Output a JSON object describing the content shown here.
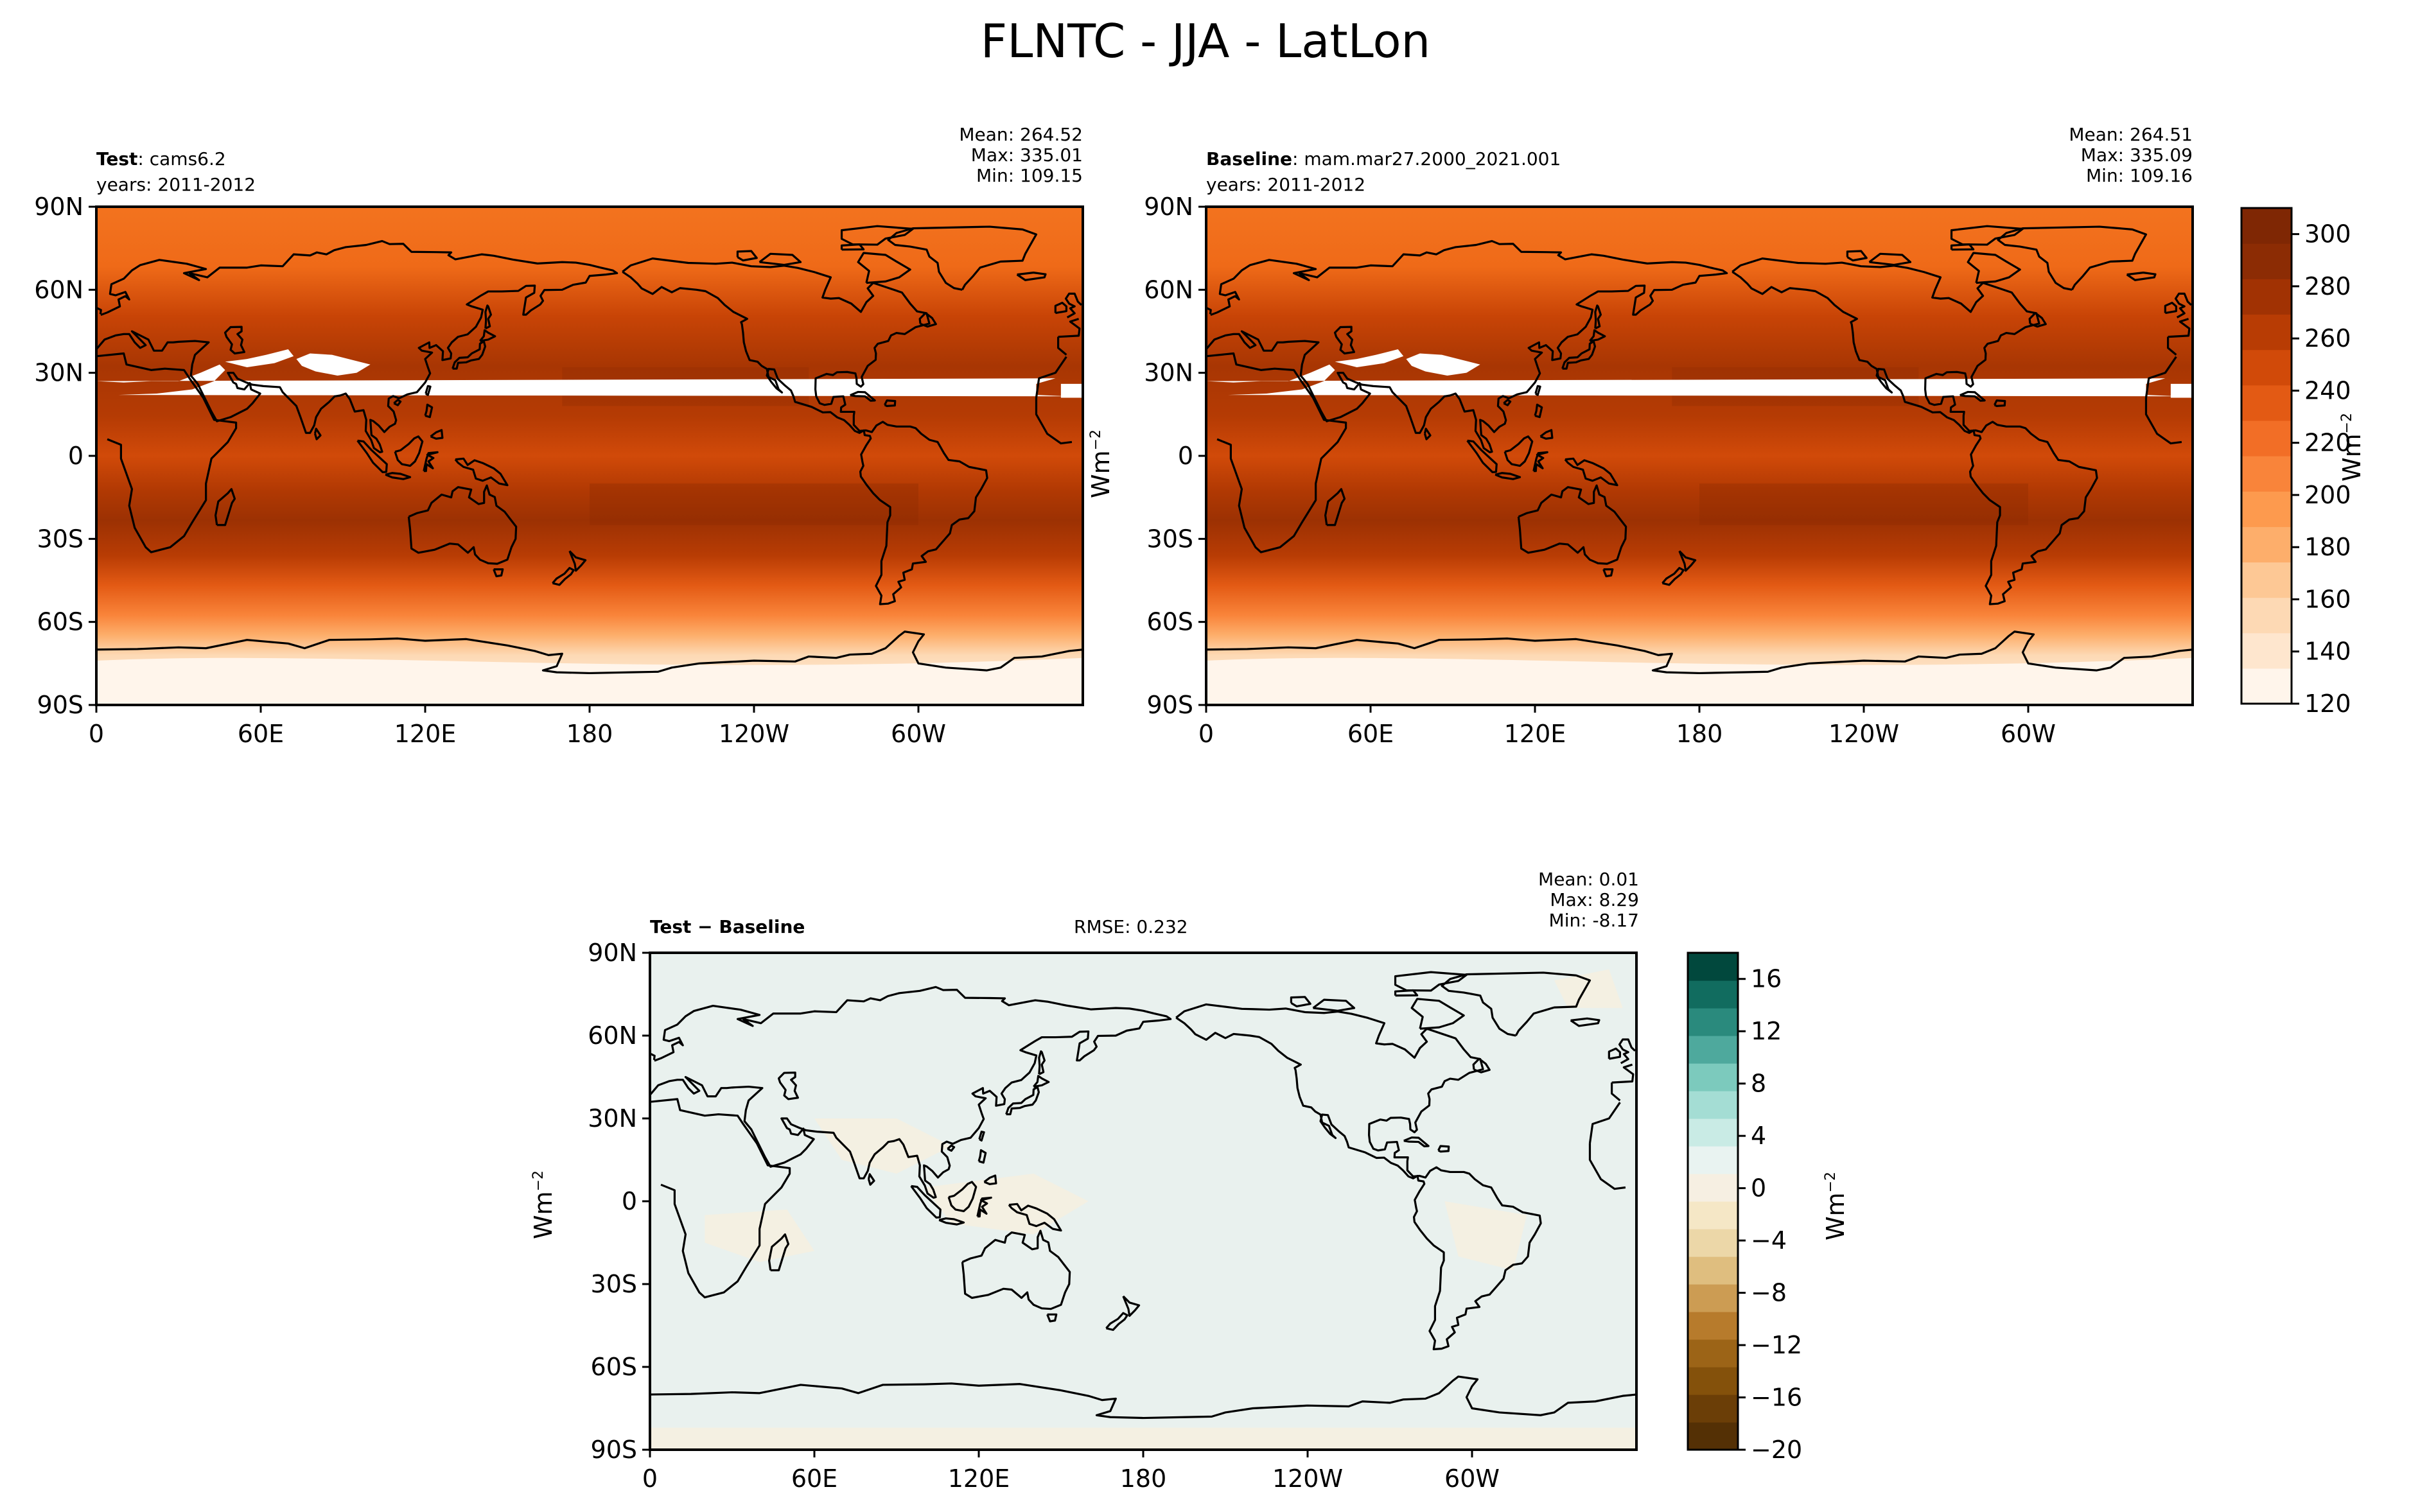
{
  "title": "FLNTC - JJA - LatLon",
  "test_panel": {
    "label_bold": "Test",
    "label_rest": ": cams6.2",
    "years": "years: 2011-2012",
    "mean": "Mean: 264.52",
    "max": "Max: 335.01",
    "min": "Min: 109.15"
  },
  "baseline_panel": {
    "label_bold": "Baseline",
    "label_rest": ": mam.mar27.2000_2021.001",
    "years": "years: 2011-2012",
    "mean": "Mean: 264.51",
    "max": "Max: 335.09",
    "min": "Min: 109.16"
  },
  "diff_panel": {
    "label_bold": "Test − Baseline",
    "rmse": "RMSE: 0.232",
    "mean": "Mean:  0.01",
    "max": "Max:  8.29",
    "min": "Min: -8.17"
  },
  "units_main": "Wm",
  "units_sup": "−2",
  "lat_ticks": [
    "90N",
    "60N",
    "30N",
    "0",
    "30S",
    "60S",
    "90S"
  ],
  "lon_ticks": [
    "0",
    "60E",
    "120E",
    "180",
    "120W",
    "60W"
  ],
  "colorbar_top": {
    "ticks": [
      "300",
      "280",
      "260",
      "240",
      "220",
      "200",
      "180",
      "160",
      "140",
      "120"
    ],
    "range": [
      120,
      310
    ],
    "colors": [
      "#fff5eb",
      "#fee6ce",
      "#fdd9b4",
      "#fdc895",
      "#fdae6b",
      "#fd9a4e",
      "#f9843a",
      "#f26e26",
      "#e35a14",
      "#d14a09",
      "#b83c04",
      "#a13203",
      "#8c2c04",
      "#7f2704"
    ]
  },
  "colorbar_diff": {
    "ticks": [
      "16",
      "12",
      "8",
      "4",
      "0",
      "−4",
      "−8",
      "−12",
      "−16",
      "−20"
    ],
    "range": [
      -20,
      18
    ],
    "colors": [
      "#543005",
      "#6b3e07",
      "#84510b",
      "#9c6417",
      "#b77b2c",
      "#cc9c53",
      "#dfbe7f",
      "#ecd7a8",
      "#f5e7c6",
      "#f6efe2",
      "#e9f3f1",
      "#c9ebe5",
      "#a4ddd4",
      "#7ccabd",
      "#4ea99d",
      "#2a8a7d",
      "#116c5f",
      "#01483d"
    ]
  },
  "map_colors": {
    "field_dark": "#8c2c04",
    "field_mid": "#d14a09",
    "field_light": "#f3731f",
    "polar_light": "#fdd9b4",
    "missing": "#ffffff",
    "diff_base": "#e9f1ee",
    "diff_warm": "#f5efe0",
    "coast": "#000000"
  }
}
